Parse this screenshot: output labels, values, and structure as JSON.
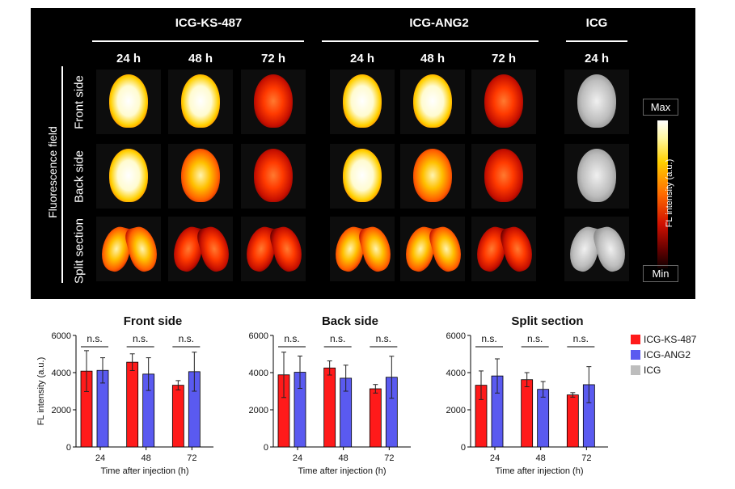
{
  "image_panel": {
    "groups": [
      {
        "name": "ICG-KS-487",
        "times": [
          "24 h",
          "48 h",
          "72 h"
        ]
      },
      {
        "name": "ICG-ANG2",
        "times": [
          "24 h",
          "48 h",
          "72 h"
        ]
      },
      {
        "name": "ICG",
        "times": [
          "24 h"
        ]
      }
    ],
    "field_label": "Fluorescence field",
    "rows": [
      "Front side",
      "Back side",
      "Split section"
    ],
    "colorbar": {
      "max": "Max",
      "min": "Min",
      "label": "FL intensity (a.u.)"
    }
  },
  "chart_data": [
    {
      "type": "bar",
      "title": "Front side",
      "xlabel": "Time after injection (h)",
      "ylabel": "FL intensity (a.u.)",
      "categories": [
        "24",
        "48",
        "72"
      ],
      "ylim": [
        0,
        6000
      ],
      "yticks": [
        "0",
        "2000",
        "4000",
        "6000"
      ],
      "series": [
        {
          "name": "ICG-KS-487",
          "values": [
            4080,
            4560,
            3320
          ],
          "errors": [
            1100,
            450,
            250
          ]
        },
        {
          "name": "ICG-ANG2",
          "values": [
            4120,
            3920,
            4050
          ],
          "errors": [
            680,
            880,
            1050
          ]
        },
        {
          "name": "ICG",
          "values": [
            0,
            0,
            0
          ],
          "errors": [
            0,
            0,
            0
          ]
        }
      ],
      "annotations": [
        "n.s.",
        "n.s.",
        "n.s."
      ]
    },
    {
      "type": "bar",
      "title": "Back side",
      "xlabel": "Time after injection (h)",
      "ylabel": "",
      "categories": [
        "24",
        "48",
        "72"
      ],
      "ylim": [
        0,
        6000
      ],
      "yticks": [
        "0",
        "2000",
        "4000",
        "6000"
      ],
      "series": [
        {
          "name": "ICG-KS-487",
          "values": [
            3880,
            4250,
            3130
          ],
          "errors": [
            1220,
            380,
            230
          ]
        },
        {
          "name": "ICG-ANG2",
          "values": [
            4020,
            3700,
            3750
          ],
          "errors": [
            870,
            700,
            1130
          ]
        },
        {
          "name": "ICG",
          "values": [
            0,
            0,
            0
          ],
          "errors": [
            0,
            0,
            0
          ]
        }
      ],
      "annotations": [
        "n.s.",
        "n.s.",
        "n.s."
      ]
    },
    {
      "type": "bar",
      "title": "Split section",
      "xlabel": "Time after injection (h)",
      "ylabel": "",
      "categories": [
        "24",
        "48",
        "72"
      ],
      "ylim": [
        0,
        6000
      ],
      "yticks": [
        "0",
        "2000",
        "4000",
        "6000"
      ],
      "series": [
        {
          "name": "ICG-KS-487",
          "values": [
            3320,
            3620,
            2800
          ],
          "errors": [
            770,
            380,
            120
          ]
        },
        {
          "name": "ICG-ANG2",
          "values": [
            3820,
            3100,
            3350
          ],
          "errors": [
            920,
            420,
            970
          ]
        },
        {
          "name": "ICG",
          "values": [
            0,
            0,
            0
          ],
          "errors": [
            0,
            0,
            0
          ]
        }
      ],
      "annotations": [
        "n.s.",
        "n.s.",
        "n.s."
      ]
    }
  ],
  "legend": [
    {
      "name": "ICG-KS-487",
      "color": "#ff1a1a"
    },
    {
      "name": "ICG-ANG2",
      "color": "#5a5af0"
    },
    {
      "name": "ICG",
      "color": "#bdbdbd"
    }
  ]
}
